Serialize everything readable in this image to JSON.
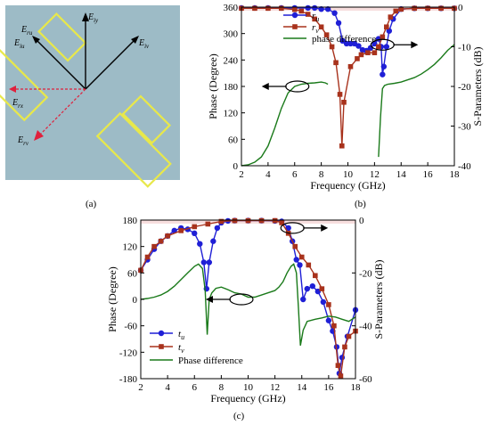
{
  "captions": {
    "a": "(a)",
    "b": "(b)",
    "c": "(c)"
  },
  "colors": {
    "ru": "#1f1fd6",
    "rv": "#a8321c",
    "pd": "#1a7a1a",
    "bg": "#9dbbc6",
    "patch": "#e8e84a",
    "shade": "#f2c8c8"
  },
  "structure": {
    "labels": [
      {
        "key": "E_iy",
        "base": "E",
        "sub": "iy"
      },
      {
        "key": "E_ru",
        "base": "E",
        "sub": "ru"
      },
      {
        "key": "E_iu",
        "base": "E",
        "sub": "iu"
      },
      {
        "key": "E_iv",
        "base": "E",
        "sub": "iv"
      },
      {
        "key": "E_rx",
        "base": "E",
        "sub": "rx"
      },
      {
        "key": "E_rv",
        "base": "E",
        "sub": "rv"
      }
    ]
  },
  "chart_data": [
    {
      "id": "b",
      "type": "line",
      "xlabel": "Frequency (GHz)",
      "ylabel": "Phase (Degree)",
      "y2label": "S-Parameters (dB)",
      "xlim": [
        2,
        18
      ],
      "ylim": [
        0,
        360
      ],
      "y2lim": [
        -40,
        0
      ],
      "xticks": [
        2,
        4,
        6,
        8,
        10,
        12,
        14,
        16,
        18
      ],
      "yticks": [
        0,
        60,
        120,
        180,
        240,
        300,
        360
      ],
      "y2ticks": [
        0,
        -10,
        -20,
        -30,
        -40
      ],
      "legend": [
        "r_u",
        "r_v",
        "phase difference"
      ],
      "series": [
        {
          "name": "r_u",
          "axis": "right",
          "marker": "circle",
          "x": [
            2,
            3,
            4,
            5,
            6,
            7,
            7.5,
            8,
            8.5,
            9,
            9.3,
            9.6,
            9.9,
            10.2,
            10.5,
            10.8,
            11.1,
            11.4,
            11.7,
            12,
            12.3,
            12.5,
            12.6,
            12.7,
            12.9,
            13.1,
            13.4,
            14,
            15,
            16,
            17,
            18
          ],
          "y": [
            -0.2,
            -0.2,
            -0.2,
            -0.2,
            -0.2,
            -0.2,
            -0.2,
            -0.5,
            -0.5,
            -1.5,
            -4,
            -8.5,
            -9.2,
            -9.2,
            -9.2,
            -9.8,
            -10.8,
            -11,
            -10.3,
            -9.2,
            -8,
            -10,
            -17,
            -15,
            -10,
            -6,
            -3,
            -0.5,
            -0.3,
            -0.3,
            -0.3,
            -0.3
          ]
        },
        {
          "name": "r_v",
          "axis": "right",
          "marker": "square",
          "x": [
            2,
            3,
            4,
            5,
            6,
            6.5,
            7,
            7.5,
            8,
            8.4,
            8.8,
            9.1,
            9.4,
            9.55,
            9.7,
            10.2,
            10.7,
            11,
            11.5,
            12,
            12.3,
            12.6,
            12.9,
            13.2,
            13.6,
            14,
            15,
            16,
            17,
            18
          ],
          "y": [
            -0.3,
            -0.3,
            -0.3,
            -0.3,
            -0.6,
            -1,
            -1.8,
            -3,
            -5,
            -7,
            -10,
            -14,
            -22,
            -35,
            -24,
            -15,
            -13,
            -12,
            -11.5,
            -11.5,
            -10,
            -7.5,
            -5,
            -2.5,
            -1,
            -0.5,
            -0.3,
            -0.3,
            -0.3,
            -0.3
          ]
        },
        {
          "name": "phase difference",
          "axis": "left",
          "x": [
            2,
            2.5,
            3,
            3.5,
            4,
            4.5,
            5,
            5.5,
            6,
            6.5,
            7,
            7.5,
            8,
            8.3,
            8.5
          ],
          "y": [
            0,
            2,
            8,
            20,
            45,
            85,
            130,
            165,
            180,
            185,
            187,
            188,
            190,
            188,
            185
          ]
        },
        {
          "name": "phase difference",
          "axis": "left",
          "x": [
            12.3,
            12.45,
            12.6,
            12.75,
            13,
            13.5,
            14,
            14.5,
            15,
            15.5,
            16,
            16.5,
            17,
            17.5,
            18
          ],
          "y": [
            20,
            110,
            175,
            182,
            185,
            187,
            190,
            195,
            200,
            208,
            218,
            230,
            245,
            262,
            275
          ]
        }
      ],
      "arrows": [
        {
          "x": 6.2,
          "y": 180,
          "dir": "left",
          "axis": "left"
        },
        {
          "x": 12.6,
          "y": -9.5,
          "dir": "right",
          "axis": "right"
        }
      ]
    },
    {
      "id": "c",
      "type": "line",
      "xlabel": "Frequency (GHz)",
      "ylabel": "Phase (Degree)",
      "y2label": "S-Parameters (dB)",
      "xlim": [
        2,
        18
      ],
      "ylim": [
        -180,
        180
      ],
      "y2lim": [
        -60,
        0
      ],
      "xticks": [
        2,
        4,
        6,
        8,
        10,
        12,
        14,
        16,
        18
      ],
      "yticks": [
        -180,
        -120,
        -60,
        0,
        60,
        120,
        180
      ],
      "y2ticks": [
        0,
        -20,
        -40,
        -60
      ],
      "legend": [
        "t_u",
        "t_v",
        "Phase difference"
      ],
      "series": [
        {
          "name": "t_u",
          "axis": "right",
          "marker": "circle",
          "x": [
            2,
            2.5,
            3,
            3.5,
            4,
            4.5,
            5,
            5.5,
            6,
            6.4,
            6.7,
            6.9,
            7.1,
            7.4,
            7.7,
            8,
            8.5,
            9,
            10,
            11,
            12,
            12.5,
            13,
            13.3,
            13.6,
            13.85,
            14.1,
            14.4,
            14.8,
            15.2,
            15.6,
            16,
            16.3,
            16.6,
            16.8,
            17,
            17.4,
            18
          ],
          "y": [
            -19,
            -15,
            -11,
            -8,
            -6,
            -4,
            -3,
            -3.5,
            -5,
            -9,
            -16,
            -26,
            -16,
            -8,
            -3,
            -1,
            -0.3,
            -0.2,
            -0.2,
            -0.2,
            -0.3,
            -0.5,
            -3,
            -8,
            -15,
            -17,
            -30,
            -26,
            -25,
            -27,
            -31,
            -38,
            -42,
            -48,
            -58,
            -52,
            -44,
            -34
          ]
        },
        {
          "name": "t_v",
          "axis": "right",
          "marker": "square",
          "x": [
            2,
            2.5,
            3,
            3.5,
            4,
            5,
            6,
            7,
            8,
            9,
            10,
            11,
            12,
            12.5,
            13,
            13.5,
            14,
            14.5,
            15,
            15.5,
            16,
            16.4,
            16.7,
            16.9,
            17.2,
            17.5,
            18
          ],
          "y": [
            -19,
            -14,
            -10,
            -8,
            -6,
            -4,
            -2.5,
            -1.5,
            -0.5,
            -0.2,
            -0.2,
            -0.2,
            -0.2,
            -1,
            -5,
            -10,
            -14,
            -17,
            -21,
            -26,
            -32,
            -40,
            -55,
            -59,
            -48,
            -44,
            -42
          ]
        },
        {
          "name": "Phase difference",
          "axis": "left",
          "x": [
            2,
            2.5,
            3,
            3.5,
            4,
            4.5,
            5,
            5.5,
            6,
            6.3,
            6.6,
            6.8,
            6.95,
            7.1,
            7.3,
            7.6,
            8,
            8.5,
            9,
            9.5,
            10,
            10.5,
            11,
            11.5,
            12,
            12.3,
            12.6,
            12.9,
            13.2,
            13.4,
            13.6,
            13.75,
            13.9,
            14.1,
            14.4,
            15,
            15.5,
            16,
            16.5,
            17,
            17.5,
            18
          ],
          "y": [
            0,
            2,
            5,
            10,
            18,
            30,
            45,
            60,
            75,
            80,
            70,
            20,
            -80,
            0,
            15,
            25,
            28,
            22,
            15,
            12,
            5,
            5,
            10,
            15,
            20,
            28,
            40,
            60,
            75,
            80,
            60,
            -20,
            -105,
            -70,
            -50,
            -45,
            -42,
            -38,
            -40,
            -45,
            -50,
            -40
          ]
        }
      ],
      "arrows": [
        {
          "x": 9.5,
          "y": 0,
          "dir": "left",
          "axis": "left"
        },
        {
          "x": 13.3,
          "y": -3,
          "dir": "right",
          "axis": "right"
        }
      ]
    }
  ]
}
